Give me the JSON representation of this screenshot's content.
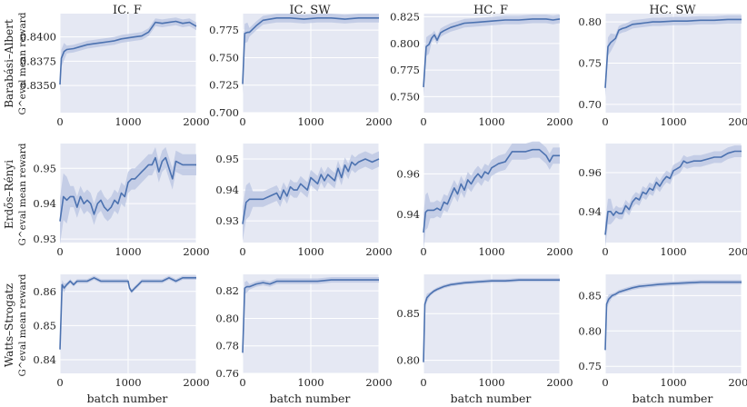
{
  "colors": {
    "panel_bg": "#e5e8f3",
    "grid": "#ffffff",
    "line": "#4c72b0",
    "band": "#b8c4e2"
  },
  "column_titles": [
    "IC, F",
    "IC, SW",
    "HC, F",
    "HC, SW"
  ],
  "row_labels": [
    {
      "name": "Barabási–Albert",
      "metric": "G^eval mean reward"
    },
    {
      "name": "Erdős–Rényi",
      "metric": "G^eval mean reward"
    },
    {
      "name": "Watts–Strogatz",
      "metric": "G^eval mean reward"
    }
  ],
  "xlabel": "batch number",
  "chart_data": [
    {
      "type": "line",
      "row": 0,
      "col": 0,
      "title": "IC, F",
      "xlim": [
        0,
        2000
      ],
      "xticks": [
        "0",
        "1000",
        "2000"
      ],
      "ylim": [
        0.8322,
        0.8424
      ],
      "yticks": [
        "0.8350",
        "0.8375",
        "0.8400"
      ],
      "series": [
        {
          "x": [
            0,
            20,
            60,
            100,
            200,
            300,
            400,
            500,
            600,
            700,
            800,
            900,
            1000,
            1100,
            1200,
            1300,
            1400,
            1500,
            1600,
            1700,
            1800,
            1900,
            1950,
            2000
          ],
          "values": [
            0.8351,
            0.8378,
            0.8385,
            0.8387,
            0.8388,
            0.839,
            0.8392,
            0.8393,
            0.8394,
            0.8395,
            0.8396,
            0.8398,
            0.8399,
            0.84,
            0.8401,
            0.8405,
            0.8415,
            0.8414,
            0.8415,
            0.8416,
            0.8414,
            0.8415,
            0.8413,
            0.8411
          ],
          "band": 0.0004
        }
      ]
    },
    {
      "type": "line",
      "row": 0,
      "col": 1,
      "title": "IC, SW",
      "xlim": [
        0,
        2000
      ],
      "xticks": [
        "0",
        "1000",
        "2000"
      ],
      "ylim": [
        0.7,
        0.79
      ],
      "yticks": [
        "0.700",
        "0.725",
        "0.750",
        "0.775"
      ],
      "series": [
        {
          "x": [
            0,
            30,
            70,
            100,
            200,
            300,
            400,
            500,
            700,
            900,
            1100,
            1300,
            1500,
            1700,
            1900,
            2000
          ],
          "values": [
            0.726,
            0.772,
            0.773,
            0.773,
            0.779,
            0.784,
            0.785,
            0.786,
            0.786,
            0.785,
            0.786,
            0.786,
            0.785,
            0.786,
            0.786,
            0.786
          ],
          "band": 0.004
        }
      ]
    },
    {
      "type": "line",
      "row": 0,
      "col": 2,
      "title": "HC, F",
      "xlim": [
        0,
        2000
      ],
      "xticks": [
        "0",
        "1000",
        "2000"
      ],
      "ylim": [
        0.735,
        0.828
      ],
      "yticks": [
        "0.750",
        "0.775",
        "0.800",
        "0.825"
      ],
      "series": [
        {
          "x": [
            0,
            40,
            80,
            120,
            160,
            200,
            250,
            300,
            400,
            500,
            600,
            800,
            1000,
            1200,
            1400,
            1600,
            1800,
            1900,
            2000
          ],
          "values": [
            0.759,
            0.797,
            0.799,
            0.805,
            0.808,
            0.803,
            0.81,
            0.812,
            0.815,
            0.817,
            0.819,
            0.82,
            0.821,
            0.822,
            0.822,
            0.823,
            0.823,
            0.822,
            0.823
          ],
          "band": 0.004
        }
      ]
    },
    {
      "type": "line",
      "row": 0,
      "col": 3,
      "title": "HC, SW",
      "xlim": [
        0,
        2000
      ],
      "xticks": [
        "0",
        "1000",
        "2000"
      ],
      "ylim": [
        0.69,
        0.81
      ],
      "yticks": [
        "0.70",
        "0.75",
        "0.80"
      ],
      "series": [
        {
          "x": [
            0,
            40,
            80,
            150,
            200,
            250,
            300,
            400,
            500,
            600,
            700,
            800,
            1000,
            1200,
            1400,
            1600,
            1800,
            2000
          ],
          "values": [
            0.72,
            0.77,
            0.775,
            0.78,
            0.79,
            0.792,
            0.793,
            0.797,
            0.798,
            0.799,
            0.8,
            0.8,
            0.801,
            0.801,
            0.802,
            0.802,
            0.803,
            0.803
          ],
          "band": 0.005
        }
      ]
    },
    {
      "type": "line",
      "row": 1,
      "col": 0,
      "title": "",
      "xlim": [
        0,
        2000
      ],
      "xticks": [
        "0",
        "1000",
        "2000"
      ],
      "ylim": [
        0.929,
        0.957
      ],
      "yticks": [
        "0.93",
        "0.94",
        "0.95"
      ],
      "series": [
        {
          "x": [
            0,
            50,
            100,
            150,
            200,
            250,
            300,
            350,
            400,
            450,
            500,
            550,
            600,
            650,
            700,
            750,
            800,
            850,
            900,
            950,
            1000,
            1050,
            1100,
            1150,
            1200,
            1250,
            1300,
            1350,
            1400,
            1450,
            1500,
            1550,
            1600,
            1650,
            1700,
            1800,
            1900,
            2000
          ],
          "values": [
            0.935,
            0.942,
            0.941,
            0.942,
            0.942,
            0.939,
            0.942,
            0.94,
            0.941,
            0.94,
            0.937,
            0.94,
            0.941,
            0.939,
            0.938,
            0.939,
            0.941,
            0.94,
            0.943,
            0.942,
            0.946,
            0.947,
            0.947,
            0.948,
            0.949,
            0.95,
            0.951,
            0.951,
            0.953,
            0.949,
            0.952,
            0.953,
            0.95,
            0.947,
            0.952,
            0.951,
            0.951,
            0.951
          ],
          "band": 0.003
        }
      ]
    },
    {
      "type": "line",
      "row": 1,
      "col": 1,
      "title": "",
      "xlim": [
        0,
        2000
      ],
      "xticks": [
        "0",
        "1000",
        "2000"
      ],
      "ylim": [
        0.923,
        0.955
      ],
      "yticks": [
        "0.93",
        "0.94",
        "0.95"
      ],
      "series": [
        {
          "x": [
            0,
            50,
            100,
            150,
            200,
            300,
            400,
            500,
            550,
            600,
            650,
            700,
            750,
            800,
            850,
            900,
            950,
            1000,
            1050,
            1100,
            1150,
            1200,
            1250,
            1300,
            1350,
            1400,
            1450,
            1500,
            1550,
            1600,
            1650,
            1700,
            1800,
            1900,
            2000
          ],
          "values": [
            0.929,
            0.936,
            0.937,
            0.937,
            0.937,
            0.937,
            0.938,
            0.939,
            0.937,
            0.94,
            0.938,
            0.941,
            0.94,
            0.94,
            0.942,
            0.941,
            0.94,
            0.944,
            0.943,
            0.942,
            0.945,
            0.943,
            0.945,
            0.944,
            0.943,
            0.947,
            0.944,
            0.948,
            0.946,
            0.949,
            0.948,
            0.949,
            0.95,
            0.949,
            0.95
          ],
          "band": 0.0025
        }
      ]
    },
    {
      "type": "line",
      "row": 1,
      "col": 2,
      "title": "",
      "xlim": [
        0,
        2000
      ],
      "xticks": [
        "0",
        "1000",
        "2000"
      ],
      "ylim": [
        0.926,
        0.975
      ],
      "yticks": [
        "0.94",
        "0.96"
      ],
      "series": [
        {
          "x": [
            0,
            30,
            60,
            100,
            150,
            200,
            250,
            300,
            350,
            400,
            450,
            500,
            550,
            600,
            650,
            700,
            750,
            800,
            850,
            900,
            950,
            1000,
            1050,
            1100,
            1200,
            1300,
            1400,
            1500,
            1600,
            1700,
            1800,
            1850,
            1900,
            2000
          ],
          "values": [
            0.931,
            0.941,
            0.942,
            0.942,
            0.942,
            0.943,
            0.942,
            0.946,
            0.945,
            0.949,
            0.953,
            0.95,
            0.955,
            0.952,
            0.957,
            0.955,
            0.958,
            0.96,
            0.958,
            0.961,
            0.96,
            0.963,
            0.964,
            0.965,
            0.966,
            0.971,
            0.971,
            0.971,
            0.972,
            0.972,
            0.969,
            0.966,
            0.969,
            0.969
          ],
          "band": 0.004
        }
      ]
    },
    {
      "type": "line",
      "row": 1,
      "col": 3,
      "title": "",
      "xlim": [
        0,
        2000
      ],
      "xticks": [
        "0",
        "1000",
        "2000"
      ],
      "ylim": [
        0.924,
        0.975
      ],
      "yticks": [
        "0.94",
        "0.96"
      ],
      "series": [
        {
          "x": [
            0,
            40,
            80,
            120,
            160,
            200,
            250,
            300,
            350,
            400,
            450,
            500,
            550,
            600,
            650,
            700,
            750,
            800,
            850,
            900,
            950,
            1000,
            1050,
            1100,
            1150,
            1200,
            1300,
            1400,
            1500,
            1600,
            1700,
            1800,
            1900,
            2000
          ],
          "values": [
            0.928,
            0.94,
            0.94,
            0.938,
            0.94,
            0.939,
            0.939,
            0.943,
            0.941,
            0.945,
            0.947,
            0.946,
            0.95,
            0.949,
            0.952,
            0.951,
            0.955,
            0.953,
            0.956,
            0.958,
            0.957,
            0.961,
            0.962,
            0.963,
            0.966,
            0.965,
            0.966,
            0.966,
            0.967,
            0.968,
            0.968,
            0.97,
            0.971,
            0.971
          ],
          "band": 0.003
        }
      ]
    },
    {
      "type": "line",
      "row": 2,
      "col": 0,
      "title": "",
      "xlim": [
        0,
        2000
      ],
      "xticks": [
        "0",
        "1000",
        "2000"
      ],
      "ylim": [
        0.836,
        0.865
      ],
      "yticks": [
        "0.84",
        "0.85",
        "0.86"
      ],
      "series": [
        {
          "x": [
            0,
            30,
            60,
            100,
            150,
            200,
            250,
            300,
            400,
            500,
            600,
            700,
            800,
            900,
            950,
            1000,
            1020,
            1050,
            1100,
            1150,
            1200,
            1300,
            1400,
            1500,
            1600,
            1700,
            1800,
            1900,
            2000
          ],
          "values": [
            0.843,
            0.862,
            0.861,
            0.862,
            0.863,
            0.862,
            0.863,
            0.863,
            0.863,
            0.864,
            0.863,
            0.863,
            0.863,
            0.863,
            0.863,
            0.863,
            0.861,
            0.86,
            0.861,
            0.862,
            0.863,
            0.863,
            0.863,
            0.863,
            0.864,
            0.863,
            0.864,
            0.864,
            0.864
          ],
          "band": 0.0006
        }
      ]
    },
    {
      "type": "line",
      "row": 2,
      "col": 1,
      "title": "",
      "xlim": [
        0,
        2000
      ],
      "xticks": [
        "0",
        "1000",
        "2000"
      ],
      "ylim": [
        0.76,
        0.832
      ],
      "yticks": [
        "0.76",
        "0.78",
        "0.80",
        "0.82"
      ],
      "series": [
        {
          "x": [
            0,
            30,
            60,
            100,
            200,
            300,
            400,
            500,
            700,
            900,
            1100,
            1300,
            1500,
            1700,
            1900,
            2000
          ],
          "values": [
            0.775,
            0.822,
            0.823,
            0.823,
            0.825,
            0.826,
            0.825,
            0.827,
            0.827,
            0.827,
            0.827,
            0.828,
            0.828,
            0.828,
            0.828,
            0.828
          ],
          "band": 0.002
        }
      ]
    },
    {
      "type": "line",
      "row": 2,
      "col": 2,
      "title": "",
      "xlim": [
        0,
        2000
      ],
      "xticks": [
        "0",
        "1000",
        "2000"
      ],
      "ylim": [
        0.786,
        0.892
      ],
      "yticks": [
        "0.80",
        "0.85"
      ],
      "series": [
        {
          "x": [
            0,
            20,
            50,
            100,
            150,
            200,
            300,
            400,
            500,
            600,
            800,
            1000,
            1200,
            1400,
            1600,
            1800,
            2000
          ],
          "values": [
            0.798,
            0.86,
            0.867,
            0.871,
            0.874,
            0.876,
            0.879,
            0.881,
            0.882,
            0.883,
            0.884,
            0.885,
            0.885,
            0.886,
            0.886,
            0.886,
            0.886
          ],
          "band": 0.002
        }
      ]
    },
    {
      "type": "line",
      "row": 2,
      "col": 3,
      "title": "",
      "xlim": [
        0,
        2000
      ],
      "xticks": [
        "0",
        "1000",
        "2000"
      ],
      "ylim": [
        0.74,
        0.88
      ],
      "yticks": [
        "0.75",
        "0.80",
        "0.85"
      ],
      "series": [
        {
          "x": [
            0,
            20,
            50,
            100,
            150,
            200,
            300,
            400,
            500,
            600,
            800,
            1000,
            1200,
            1400,
            1600,
            1800,
            2000
          ],
          "values": [
            0.773,
            0.838,
            0.845,
            0.85,
            0.852,
            0.855,
            0.858,
            0.861,
            0.863,
            0.864,
            0.866,
            0.867,
            0.868,
            0.869,
            0.869,
            0.869,
            0.869
          ],
          "band": 0.003
        }
      ]
    }
  ]
}
